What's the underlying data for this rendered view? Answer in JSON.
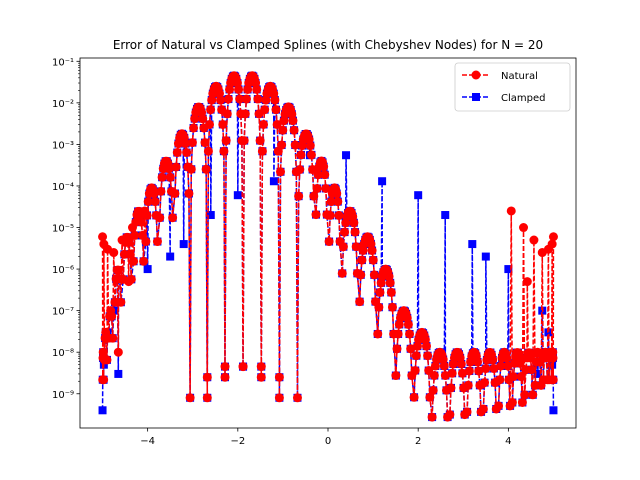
{
  "chart_data": {
    "type": "line",
    "title": "Error of Natural vs Clamped Splines (with Chebyshev Nodes) for N = 20",
    "xlabel": "",
    "ylabel": "",
    "yscale": "log",
    "xlim": [
      -5.5,
      5.5
    ],
    "ylim": [
      1.5e-10,
      0.12
    ],
    "grid": false,
    "legend_position": "top-right",
    "x_ticks": [
      -4,
      -2,
      0,
      2,
      4
    ],
    "x_tick_labels": [
      "−4",
      "−2",
      "0",
      "2",
      "4"
    ],
    "y_ticks": [
      1e-09,
      1e-08,
      1e-07,
      1e-06,
      1e-05,
      0.0001,
      0.001,
      0.01,
      0.1
    ],
    "y_tick_labels": [
      "10⁻⁹",
      "10⁻⁸",
      "10⁻⁷",
      "10⁻⁶",
      "10⁻⁵",
      "10⁻⁴",
      "10⁻³",
      "10⁻²",
      "10⁻¹"
    ],
    "nodes": [
      -5.0,
      -4.971,
      -4.888,
      -4.752,
      -4.567,
      -4.336,
      -4.064,
      -3.757,
      -3.42,
      -3.058,
      -2.677,
      -2.284,
      -1.884,
      -1.48,
      -1.078,
      -0.677,
      -0.29,
      0.0,
      0.29,
      0.677,
      1.078,
      1.48,
      1.884,
      2.284,
      2.677,
      3.058,
      3.42,
      3.757,
      4.064,
      4.336,
      4.567,
      4.752,
      4.888,
      4.971,
      5.0
    ],
    "arch_peaks": [
      1e-08,
      3e-08,
      1e-07,
      1e-06,
      6e-06,
      2.5e-05,
      9e-05,
      0.0004,
      0.0018,
      0.008,
      0.025,
      0.045,
      0.045,
      0.025,
      0.008,
      0.0018,
      0.0004,
      9e-05,
      2.5e-05,
      6e-06,
      1e-06,
      1e-07,
      3e-08,
      1e-08
    ],
    "series": [
      {
        "name": "Natural",
        "color": "#ff0000",
        "linestyle": "dashed",
        "marker": "circle",
        "edge_x": [
          -5.0,
          -4.971,
          -4.888,
          -4.752,
          -4.567,
          -4.336,
          -4.064,
          4.064,
          4.336,
          4.567,
          4.752,
          4.888,
          4.971,
          5.0
        ],
        "edge_values": [
          6e-06,
          4e-06,
          3e-06,
          2.5e-06,
          5e-06,
          1e-05,
          2.5e-05,
          2.5e-05,
          1e-05,
          5e-06,
          2.5e-06,
          3e-06,
          4e-06,
          6e-06
        ],
        "dips": [
          {
            "x": -4.65,
            "y": 1e-08
          },
          {
            "x": 4.65,
            "y": 1e-08
          },
          {
            "x": -4.42,
            "y": 5e-07
          },
          {
            "x": 4.42,
            "y": 5e-07
          }
        ]
      },
      {
        "name": "Clamped",
        "color": "#0000ff",
        "linestyle": "dashed",
        "marker": "square",
        "edge_x": [
          -5.0,
          -4.971,
          -4.888,
          -4.752,
          4.752,
          4.888,
          4.971,
          5.0
        ],
        "edge_values": [
          4e-10,
          5e-09,
          3e-08,
          1e-07,
          1e-07,
          3e-08,
          5e-09,
          4e-10
        ],
        "dips": [
          {
            "x": -4.65,
            "y": 3e-09
          },
          {
            "x": -4.0,
            "y": 1e-06
          },
          {
            "x": -3.5,
            "y": 2e-06
          },
          {
            "x": -3.2,
            "y": 4e-06
          },
          {
            "x": -2.6,
            "y": 2e-05
          },
          {
            "x": -2.0,
            "y": 6e-05
          },
          {
            "x": -1.2,
            "y": 0.00013
          },
          {
            "x": -0.4,
            "y": 0.00055
          },
          {
            "x": 0.4,
            "y": 0.00055
          },
          {
            "x": 1.2,
            "y": 0.00013
          },
          {
            "x": 2.0,
            "y": 6e-05
          },
          {
            "x": 2.6,
            "y": 2e-05
          },
          {
            "x": 3.2,
            "y": 4e-06
          },
          {
            "x": 3.5,
            "y": 2e-06
          },
          {
            "x": 4.0,
            "y": 1e-06
          },
          {
            "x": 4.65,
            "y": 3e-09
          }
        ]
      }
    ]
  }
}
